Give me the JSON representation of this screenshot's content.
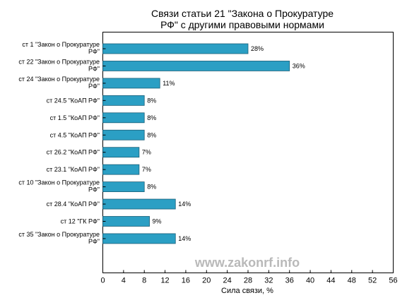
{
  "chart_data": {
    "type": "bar",
    "orientation": "horizontal",
    "title_lines": [
      "Связи статьи 21 \"Закона о Прокуратуре",
      "РФ\" с другими правовыми нормами"
    ],
    "xlabel": "Сила связи, %",
    "ylabel": "",
    "xlim": [
      0,
      56
    ],
    "xticks": [
      0,
      4,
      8,
      12,
      16,
      20,
      24,
      28,
      32,
      36,
      40,
      44,
      48,
      52,
      56
    ],
    "grid": false,
    "legend": "none",
    "bar_color": "#2b9fc4",
    "bar_edge_color": "#1a5f78",
    "categories": [
      [
        "ст 1 \"Закон о Прокуратуре",
        "РФ\""
      ],
      [
        "ст 22 \"Закон о Прокуратуре",
        "РФ\""
      ],
      [
        "ст 24 \"Закон о Прокуратуре",
        "РФ\""
      ],
      [
        "ст 24.5 \"КоАП РФ\""
      ],
      [
        "ст 1.5 \"КоАП РФ\""
      ],
      [
        "ст 4.5 \"КоАП РФ\""
      ],
      [
        "ст 26.2 \"КоАП РФ\""
      ],
      [
        "ст 23.1 \"КоАП РФ\""
      ],
      [
        "ст 10 \"Закон о Прокуратуре",
        "РФ\""
      ],
      [
        "ст 28.4 \"КоАП РФ\""
      ],
      [
        "ст 12 \"ГК РФ\""
      ],
      [
        "ст 35 \"Закон о Прокуратуре",
        "РФ\""
      ]
    ],
    "values": [
      28,
      36,
      11,
      8,
      8,
      8,
      7,
      7,
      8,
      14,
      9,
      14
    ],
    "value_labels": [
      "28%",
      "36%",
      "11%",
      "8%",
      "8%",
      "8%",
      "7%",
      "7%",
      "8%",
      "14%",
      "9%",
      "14%"
    ]
  },
  "watermark": {
    "text": "www.zakonrf.info",
    "color": "#b9b9b9"
  }
}
